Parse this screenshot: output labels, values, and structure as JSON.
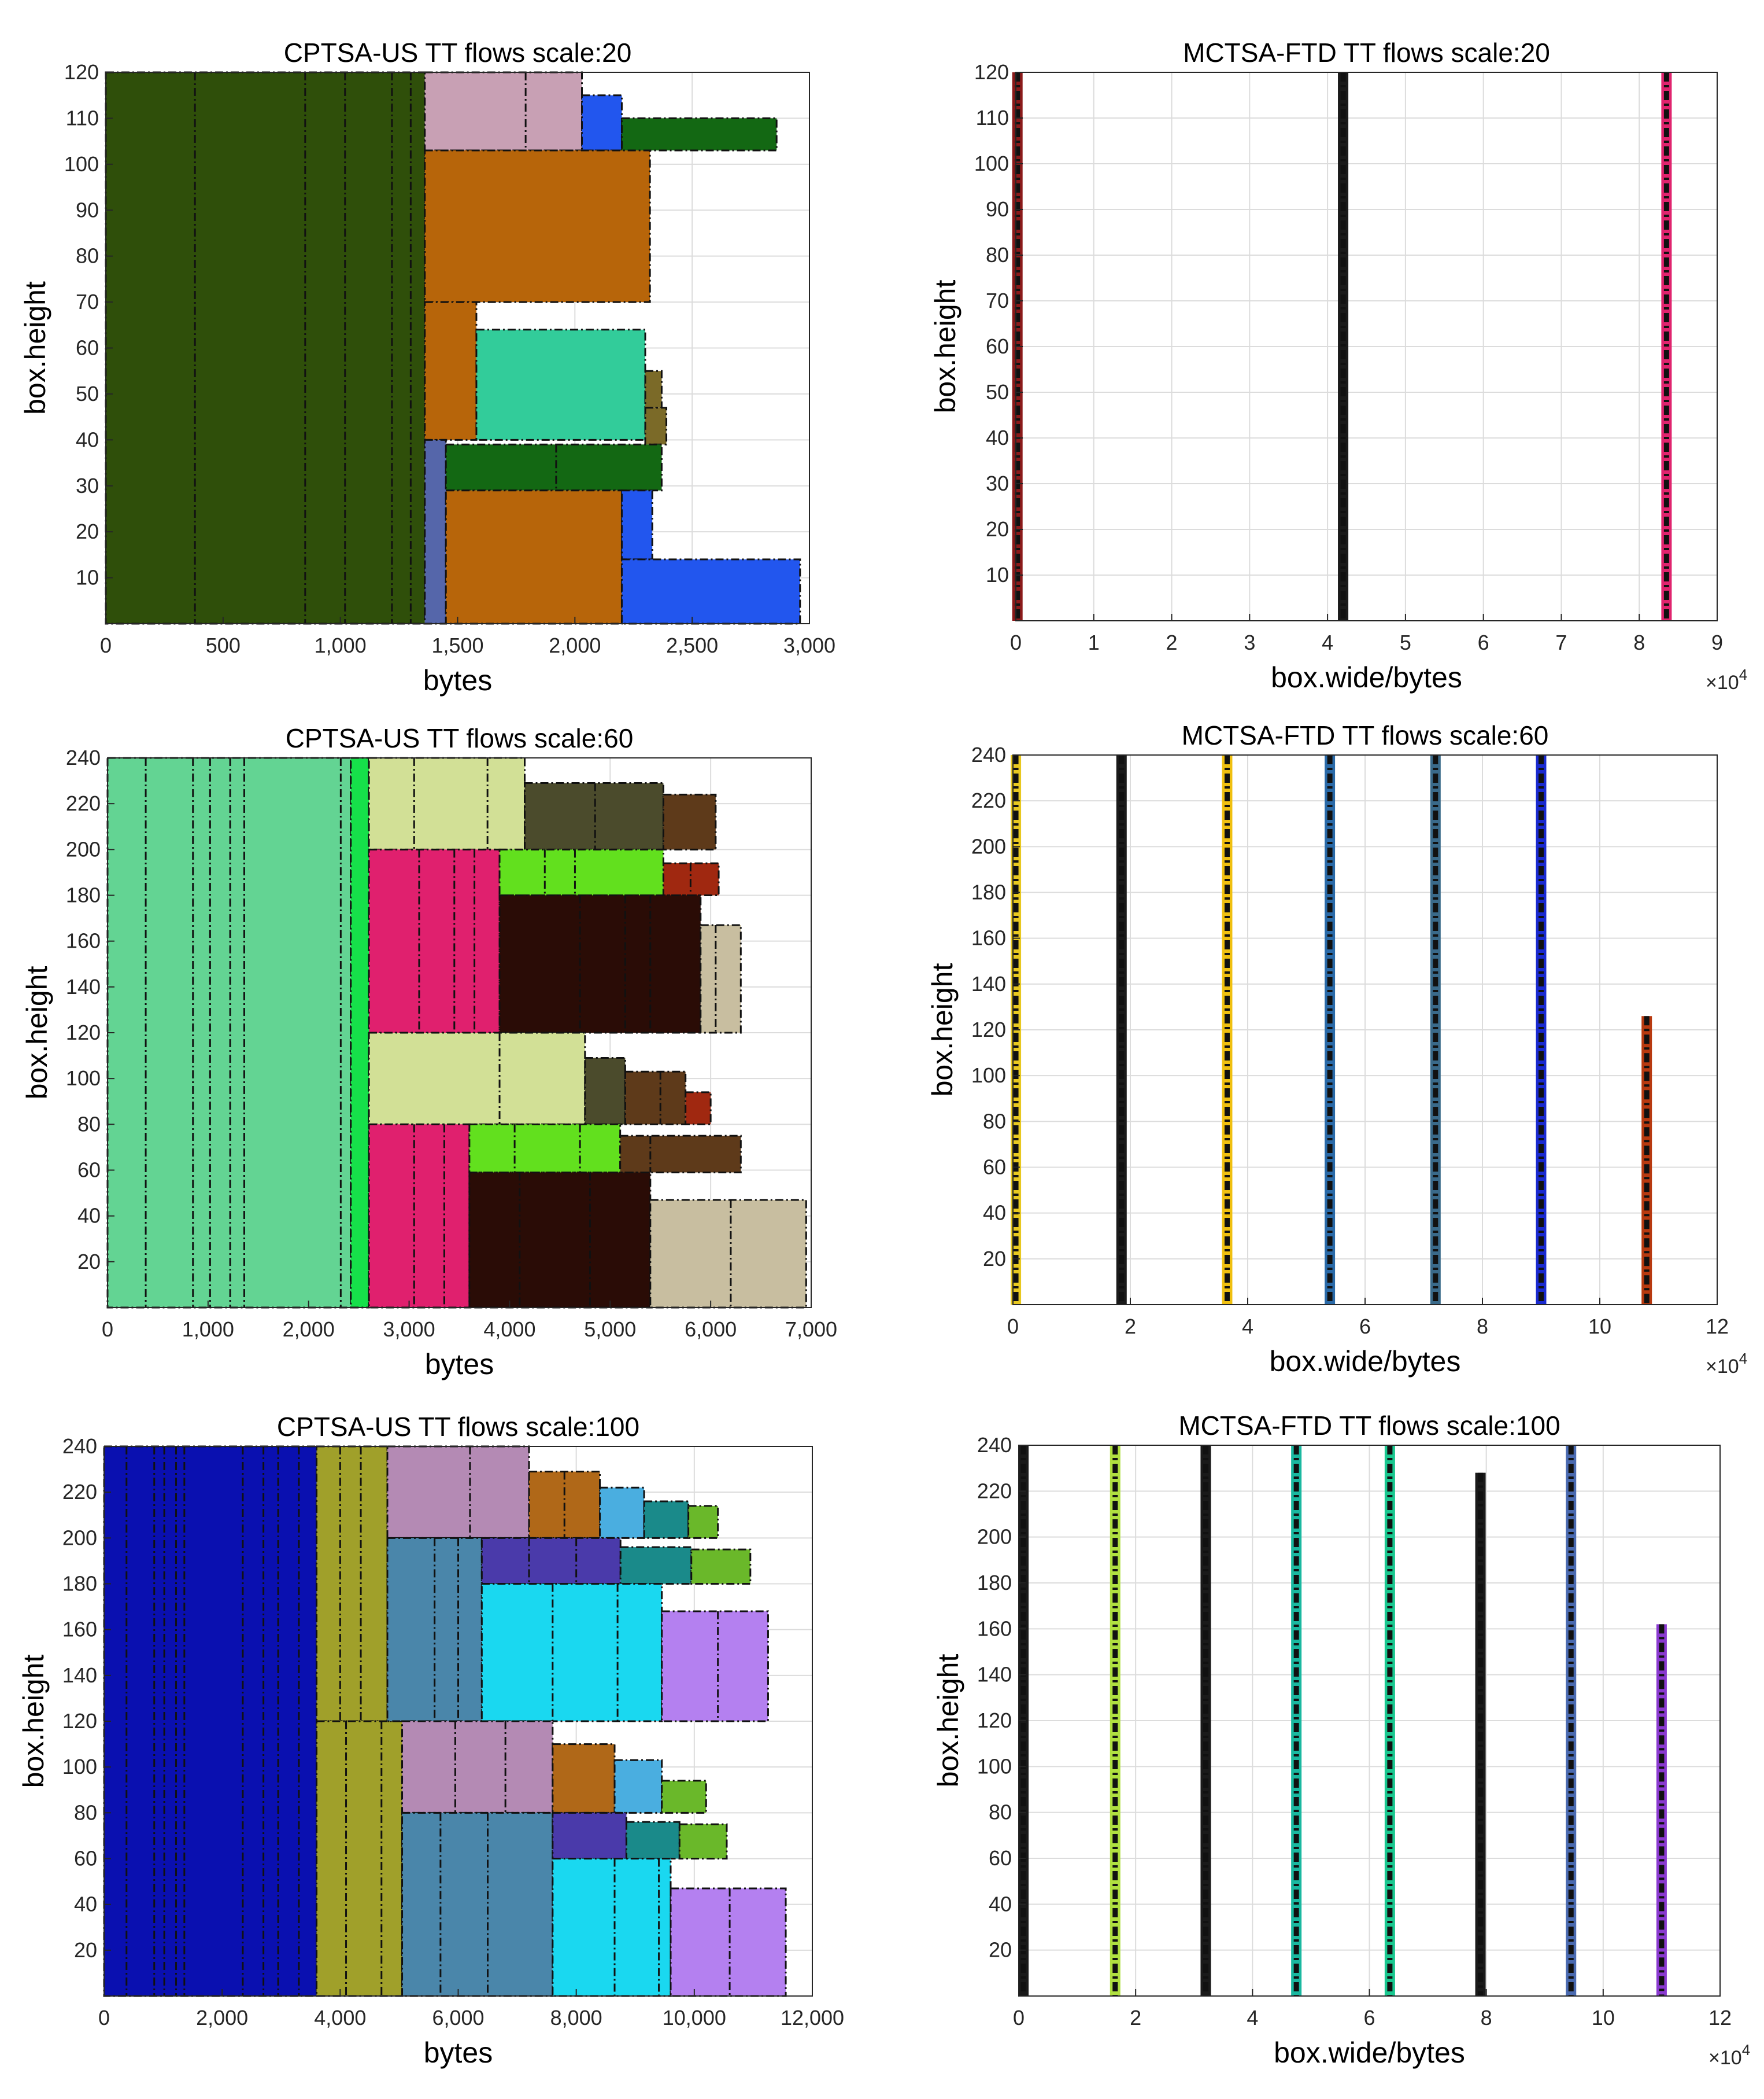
{
  "chart_data": [
    {
      "type": "bar",
      "subtype": "packing-rectangles",
      "title": "CPTSA-US TT flows scale:20",
      "xlabel": "bytes",
      "ylabel": "box.height",
      "xlim": [
        0,
        3000
      ],
      "ylim": [
        0,
        120
      ],
      "xticks": [
        0,
        500,
        1000,
        1500,
        2000,
        2500,
        3000
      ],
      "xtick_labels": [
        "0",
        "500",
        "1,000",
        "1,500",
        "2,000",
        "2,500",
        "3,000"
      ],
      "yticks": [
        10,
        20,
        30,
        40,
        50,
        60,
        70,
        80,
        90,
        100,
        110,
        120
      ],
      "exponent": "",
      "grid": true,
      "boxes": [
        {
          "x0": 0,
          "x1": 1360,
          "y0": 0,
          "y1": 120,
          "color": "#2f4f0a",
          "dividers": [
            380,
            850,
            1020,
            1220,
            1300
          ]
        },
        {
          "x0": 1360,
          "x1": 2030,
          "y0": 103,
          "y1": 120,
          "color": "#c8a0b4",
          "dividers": [
            1790
          ]
        },
        {
          "x0": 2030,
          "x1": 2200,
          "y0": 103,
          "y1": 115,
          "color": "#2256ee",
          "dividers": []
        },
        {
          "x0": 2200,
          "x1": 2860,
          "y0": 103,
          "y1": 110,
          "color": "#136813",
          "dividers": []
        },
        {
          "x0": 1360,
          "x1": 2320,
          "y0": 70,
          "y1": 103,
          "color": "#b7650a",
          "dividers": []
        },
        {
          "x0": 1360,
          "x1": 1580,
          "y0": 40,
          "y1": 70,
          "color": "#b7650a",
          "dividers": []
        },
        {
          "x0": 1580,
          "x1": 2300,
          "y0": 40,
          "y1": 64,
          "color": "#32cc9a",
          "dividers": []
        },
        {
          "x0": 2300,
          "x1": 2370,
          "y0": 47,
          "y1": 55,
          "color": "#7b6a28",
          "dividers": []
        },
        {
          "x0": 2300,
          "x1": 2390,
          "y0": 39,
          "y1": 47,
          "color": "#7b6a28",
          "dividers": []
        },
        {
          "x0": 1360,
          "x1": 1450,
          "y0": 0,
          "y1": 40,
          "color": "#5566aa",
          "dividers": []
        },
        {
          "x0": 1450,
          "x1": 2370,
          "y0": 29,
          "y1": 39,
          "color": "#136813",
          "dividers": [
            1920
          ]
        },
        {
          "x0": 1450,
          "x1": 2200,
          "y0": 0,
          "y1": 29,
          "color": "#b7650a",
          "dividers": []
        },
        {
          "x0": 2200,
          "x1": 2330,
          "y0": 14,
          "y1": 29,
          "color": "#2256ee",
          "dividers": []
        },
        {
          "x0": 2200,
          "x1": 2960,
          "y0": 0,
          "y1": 14,
          "color": "#2256ee",
          "dividers": []
        }
      ]
    },
    {
      "type": "bar",
      "subtype": "vertical-strips",
      "title": "MCTSA-FTD TT flows scale:20",
      "xlabel": "box.wide/bytes",
      "ylabel": "box.height",
      "xlim": [
        0,
        9
      ],
      "ylim": [
        0,
        120
      ],
      "xticks": [
        0,
        1,
        2,
        3,
        4,
        5,
        6,
        7,
        8,
        9
      ],
      "xtick_labels": [
        "0",
        "1",
        "2",
        "3",
        "4",
        "5",
        "6",
        "7",
        "8",
        "9"
      ],
      "yticks": [
        10,
        20,
        30,
        40,
        50,
        60,
        70,
        80,
        90,
        100,
        110,
        120
      ],
      "exponent": "×10^4",
      "grid": true,
      "strips": [
        {
          "x": 0.02,
          "y1": 120,
          "color": "#8b1a1a"
        },
        {
          "x": 4.2,
          "y1": 120,
          "color": "#1a1a1a"
        },
        {
          "x": 8.35,
          "y1": 120,
          "color": "#e0246e"
        }
      ]
    },
    {
      "type": "bar",
      "subtype": "packing-rectangles",
      "title": "CPTSA-US TT flows scale:60",
      "xlabel": "bytes",
      "ylabel": "box.height",
      "xlim": [
        0,
        7000
      ],
      "ylim": [
        0,
        240
      ],
      "xticks": [
        0,
        1000,
        2000,
        3000,
        4000,
        5000,
        6000,
        7000
      ],
      "xtick_labels": [
        "0",
        "1,000",
        "2,000",
        "3,000",
        "4,000",
        "5,000",
        "6,000",
        "7,000"
      ],
      "yticks": [
        20,
        40,
        60,
        80,
        100,
        120,
        140,
        160,
        180,
        200,
        220,
        240
      ],
      "exponent": "",
      "grid": true,
      "boxes": [
        {
          "x0": 0,
          "x1": 2420,
          "y0": 0,
          "y1": 240,
          "color": "#63d493",
          "dividers": [
            380,
            850,
            1020,
            1220,
            1360,
            2320
          ]
        },
        {
          "x0": 2420,
          "x1": 2600,
          "y0": 0,
          "y1": 240,
          "color": "#16e04a",
          "dividers": []
        },
        {
          "x0": 2600,
          "x1": 4150,
          "y0": 200,
          "y1": 240,
          "color": "#d2e096",
          "dividers": [
            3050,
            3780
          ]
        },
        {
          "x0": 4150,
          "x1": 5530,
          "y0": 200,
          "y1": 229,
          "color": "#4b4b2c",
          "dividers": [
            4850
          ]
        },
        {
          "x0": 5530,
          "x1": 6050,
          "y0": 200,
          "y1": 224,
          "color": "#5e3a1a",
          "dividers": []
        },
        {
          "x0": 2600,
          "x1": 3900,
          "y0": 120,
          "y1": 200,
          "color": "#e0206e",
          "dividers": [
            3100,
            3450,
            3650
          ]
        },
        {
          "x0": 3900,
          "x1": 5530,
          "y0": 180,
          "y1": 200,
          "color": "#62e01e",
          "dividers": [
            4350,
            4650
          ]
        },
        {
          "x0": 5530,
          "x1": 6080,
          "y0": 180,
          "y1": 194,
          "color": "#a02810",
          "dividers": [
            5800
          ]
        },
        {
          "x0": 3900,
          "x1": 5900,
          "y0": 120,
          "y1": 180,
          "color": "#2a0c06",
          "dividers": [
            4700,
            5150,
            5400
          ]
        },
        {
          "x0": 5900,
          "x1": 6300,
          "y0": 120,
          "y1": 167,
          "color": "#c8bea0",
          "dividers": [
            6050
          ]
        },
        {
          "x0": 2600,
          "x1": 4750,
          "y0": 80,
          "y1": 120,
          "color": "#d2e096",
          "dividers": [
            3900
          ]
        },
        {
          "x0": 4750,
          "x1": 5150,
          "y0": 80,
          "y1": 109,
          "color": "#4b4b2c",
          "dividers": []
        },
        {
          "x0": 5150,
          "x1": 5750,
          "y0": 80,
          "y1": 103,
          "color": "#5e3a1a",
          "dividers": [
            5500
          ]
        },
        {
          "x0": 5750,
          "x1": 6000,
          "y0": 80,
          "y1": 94,
          "color": "#a02810",
          "dividers": []
        },
        {
          "x0": 2600,
          "x1": 3600,
          "y0": 0,
          "y1": 80,
          "color": "#e0206e",
          "dividers": [
            3050,
            3350
          ]
        },
        {
          "x0": 3600,
          "x1": 5100,
          "y0": 59,
          "y1": 80,
          "color": "#62e01e",
          "dividers": [
            4050,
            4700
          ]
        },
        {
          "x0": 5100,
          "x1": 6300,
          "y0": 59,
          "y1": 75,
          "color": "#5e3a1a",
          "dividers": [
            5400
          ]
        },
        {
          "x0": 3600,
          "x1": 5400,
          "y0": 0,
          "y1": 59,
          "color": "#2a0c06",
          "dividers": [
            4100,
            4800
          ]
        },
        {
          "x0": 5400,
          "x1": 6950,
          "y0": 0,
          "y1": 47,
          "color": "#c8bea0",
          "dividers": [
            6200
          ]
        }
      ]
    },
    {
      "type": "bar",
      "subtype": "vertical-strips",
      "title": "MCTSA-FTD TT flows scale:60",
      "xlabel": "box.wide/bytes",
      "ylabel": "box.height",
      "xlim": [
        0,
        12
      ],
      "ylim": [
        0,
        240
      ],
      "xticks": [
        0,
        2,
        4,
        6,
        8,
        10,
        12
      ],
      "xtick_labels": [
        "0",
        "2",
        "4",
        "6",
        "8",
        "10",
        "12"
      ],
      "yticks": [
        20,
        40,
        60,
        80,
        100,
        120,
        140,
        160,
        180,
        200,
        220,
        240
      ],
      "exponent": "×10^4",
      "grid": true,
      "strips": [
        {
          "x": 0.05,
          "y1": 240,
          "color": "#e8c820"
        },
        {
          "x": 1.85,
          "y1": 240,
          "color": "#1a1a1a"
        },
        {
          "x": 3.65,
          "y1": 240,
          "color": "#f0c010"
        },
        {
          "x": 5.4,
          "y1": 240,
          "color": "#2a6aa8"
        },
        {
          "x": 7.2,
          "y1": 240,
          "color": "#3a6a8a"
        },
        {
          "x": 9.0,
          "y1": 240,
          "color": "#1a2ad0"
        },
        {
          "x": 10.8,
          "y1": 126,
          "color": "#b83a10"
        }
      ]
    },
    {
      "type": "bar",
      "subtype": "packing-rectangles",
      "title": "CPTSA-US TT flows scale:100",
      "xlabel": "bytes",
      "ylabel": "box.height",
      "xlim": [
        0,
        12000
      ],
      "ylim": [
        0,
        240
      ],
      "xticks": [
        0,
        2000,
        4000,
        6000,
        8000,
        10000,
        12000
      ],
      "xtick_labels": [
        "0",
        "2,000",
        "4,000",
        "6,000",
        "8,000",
        "10,000",
        "12,000"
      ],
      "yticks": [
        20,
        40,
        60,
        80,
        100,
        120,
        140,
        160,
        180,
        200,
        220,
        240
      ],
      "exponent": "",
      "grid": true,
      "boxes": [
        {
          "x0": 0,
          "x1": 3600,
          "y0": 0,
          "y1": 240,
          "color": "#0a10b0",
          "dividers": [
            380,
            850,
            1020,
            1220,
            1360,
            2350,
            2700,
            2950,
            3300
          ]
        },
        {
          "x0": 3600,
          "x1": 4800,
          "y0": 120,
          "y1": 240,
          "color": "#a0a02a",
          "dividers": [
            4000,
            4350
          ]
        },
        {
          "x0": 3600,
          "x1": 5050,
          "y0": 0,
          "y1": 120,
          "color": "#a0a02a",
          "dividers": [
            4100,
            4700
          ]
        },
        {
          "x0": 4800,
          "x1": 7200,
          "y0": 200,
          "y1": 240,
          "color": "#b48ab4",
          "dividers": [
            6200
          ]
        },
        {
          "x0": 7200,
          "x1": 8400,
          "y0": 200,
          "y1": 229,
          "color": "#b06818",
          "dividers": [
            7800
          ]
        },
        {
          "x0": 8400,
          "x1": 9150,
          "y0": 200,
          "y1": 222,
          "color": "#4aaee0",
          "dividers": []
        },
        {
          "x0": 9150,
          "x1": 9900,
          "y0": 200,
          "y1": 216,
          "color": "#1a8a8a",
          "dividers": []
        },
        {
          "x0": 9900,
          "x1": 10400,
          "y0": 200,
          "y1": 214,
          "color": "#6ab82a",
          "dividers": []
        },
        {
          "x0": 4800,
          "x1": 6400,
          "y0": 120,
          "y1": 200,
          "color": "#4a86aa",
          "dividers": [
            5600,
            6000
          ]
        },
        {
          "x0": 6400,
          "x1": 8750,
          "y0": 180,
          "y1": 200,
          "color": "#4a3aaa",
          "dividers": [
            7200,
            8000
          ]
        },
        {
          "x0": 8750,
          "x1": 9950,
          "y0": 180,
          "y1": 196,
          "color": "#1a8a8a",
          "dividers": []
        },
        {
          "x0": 9950,
          "x1": 10950,
          "y0": 180,
          "y1": 195,
          "color": "#6ab82a",
          "dividers": []
        },
        {
          "x0": 6400,
          "x1": 9450,
          "y0": 120,
          "y1": 180,
          "color": "#1ad8f0",
          "dividers": [
            7600,
            8700
          ]
        },
        {
          "x0": 9450,
          "x1": 11250,
          "y0": 120,
          "y1": 168,
          "color": "#b480f0",
          "dividers": [
            10400
          ]
        },
        {
          "x0": 5050,
          "x1": 7600,
          "y0": 80,
          "y1": 120,
          "color": "#b48ab4",
          "dividers": [
            5950,
            6800
          ]
        },
        {
          "x0": 7600,
          "x1": 8650,
          "y0": 80,
          "y1": 110,
          "color": "#b06818",
          "dividers": []
        },
        {
          "x0": 8650,
          "x1": 9450,
          "y0": 80,
          "y1": 103,
          "color": "#4aaee0",
          "dividers": []
        },
        {
          "x0": 9450,
          "x1": 10200,
          "y0": 80,
          "y1": 94,
          "color": "#6ab82a",
          "dividers": []
        },
        {
          "x0": 5050,
          "x1": 7600,
          "y0": 0,
          "y1": 80,
          "color": "#4a86aa",
          "dividers": [
            5700,
            6500
          ]
        },
        {
          "x0": 7600,
          "x1": 8850,
          "y0": 60,
          "y1": 80,
          "color": "#4a3aaa",
          "dividers": []
        },
        {
          "x0": 8850,
          "x1": 9750,
          "y0": 60,
          "y1": 76,
          "color": "#1a8a8a",
          "dividers": []
        },
        {
          "x0": 9750,
          "x1": 10550,
          "y0": 60,
          "y1": 75,
          "color": "#6ab82a",
          "dividers": []
        },
        {
          "x0": 7600,
          "x1": 9600,
          "y0": 0,
          "y1": 60,
          "color": "#1ad8f0",
          "dividers": [
            8650,
            9400
          ]
        },
        {
          "x0": 9600,
          "x1": 11550,
          "y0": 0,
          "y1": 47,
          "color": "#b480f0",
          "dividers": [
            10600
          ]
        }
      ]
    },
    {
      "type": "bar",
      "subtype": "vertical-strips",
      "title": "MCTSA-FTD TT flows scale:100",
      "xlabel": "box.wide/bytes",
      "ylabel": "box.height",
      "xlim": [
        0,
        12
      ],
      "ylim": [
        0,
        240
      ],
      "xticks": [
        0,
        2,
        4,
        6,
        8,
        10,
        12
      ],
      "xtick_labels": [
        "0",
        "2",
        "4",
        "6",
        "8",
        "10",
        "12"
      ],
      "yticks": [
        20,
        40,
        60,
        80,
        100,
        120,
        140,
        160,
        180,
        200,
        220,
        240
      ],
      "exponent": "×10^4",
      "grid": true,
      "strips": [
        {
          "x": 0.08,
          "y1": 240,
          "color": "#1a1a1a"
        },
        {
          "x": 1.65,
          "y1": 240,
          "color": "#b0e040"
        },
        {
          "x": 3.2,
          "y1": 240,
          "color": "#1a1a1a"
        },
        {
          "x": 4.75,
          "y1": 240,
          "color": "#1ab8a0"
        },
        {
          "x": 6.35,
          "y1": 240,
          "color": "#1ac890"
        },
        {
          "x": 7.9,
          "y1": 228,
          "color": "#1a1a1a"
        },
        {
          "x": 9.45,
          "y1": 240,
          "color": "#4a6ab0"
        },
        {
          "x": 11.0,
          "y1": 162,
          "color": "#8a3ad0"
        }
      ]
    }
  ]
}
